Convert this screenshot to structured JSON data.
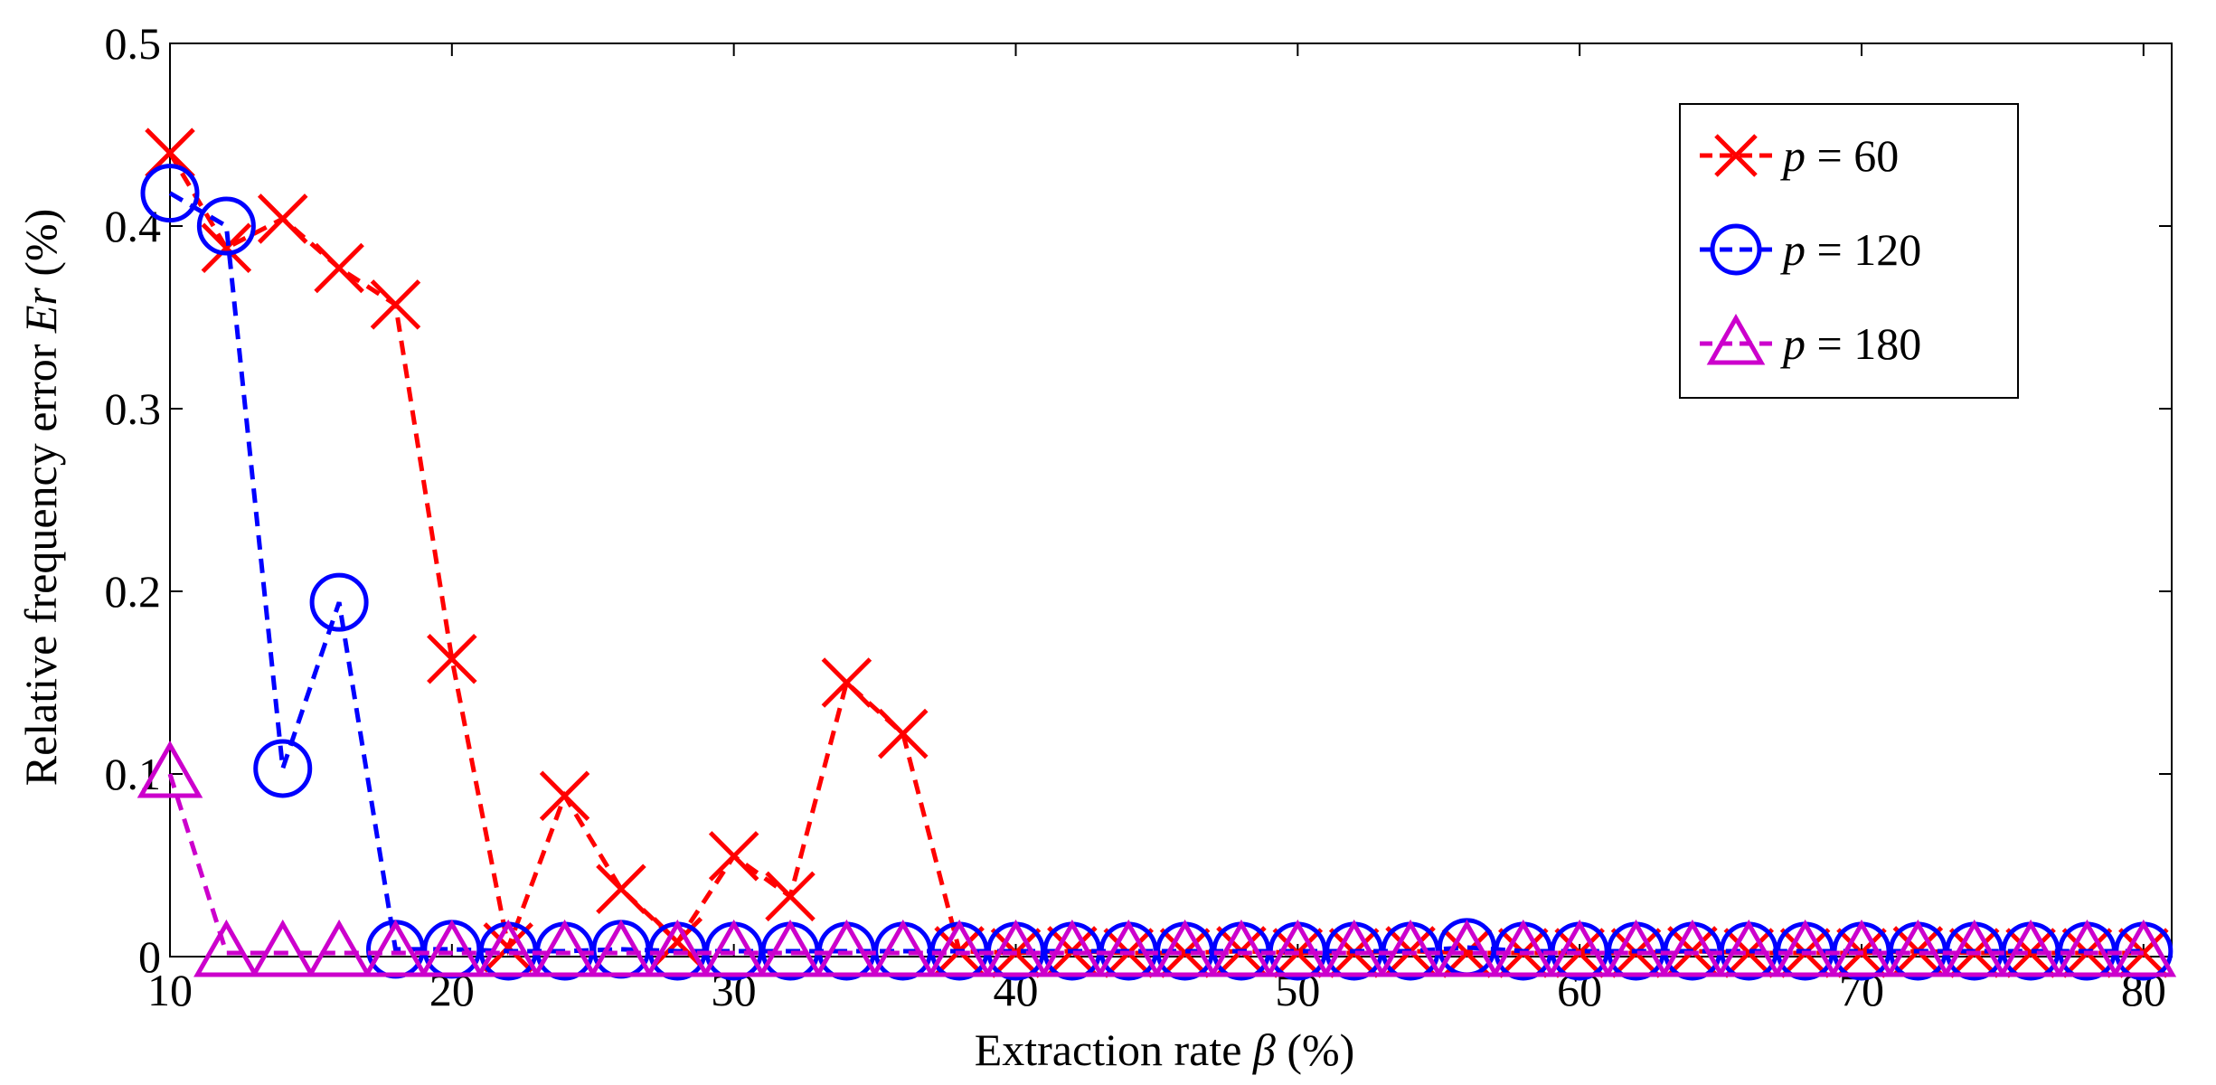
{
  "chart_data": {
    "type": "line",
    "title": "",
    "xlabel": {
      "prefix": "Extraction rate ",
      "symbol": "β",
      "suffix": " (%)"
    },
    "ylabel": {
      "prefix": "Relative frequency error ",
      "symbol": "Er",
      "suffix": " (%)"
    },
    "xlim": [
      10,
      81
    ],
    "ylim": [
      0,
      0.5
    ],
    "xticks": [
      10,
      20,
      30,
      40,
      50,
      60,
      70,
      80
    ],
    "yticks": [
      0,
      0.1,
      0.2,
      0.3,
      0.4,
      0.5
    ],
    "xtick_labels": [
      "10",
      "20",
      "30",
      "40",
      "50",
      "60",
      "70",
      "80"
    ],
    "ytick_labels": [
      "0",
      "0.1",
      "0.2",
      "0.3",
      "0.4",
      "0.5"
    ],
    "grid": false,
    "legend_position": "top-right",
    "x": [
      10,
      12,
      14,
      16,
      18,
      20,
      22,
      24,
      26,
      28,
      30,
      32,
      34,
      36,
      38,
      40,
      42,
      44,
      46,
      48,
      50,
      52,
      54,
      56,
      58,
      60,
      62,
      64,
      66,
      68,
      70,
      72,
      74,
      76,
      78,
      80
    ],
    "series": [
      {
        "name": "p = 60",
        "legend_var": "p",
        "legend_value": " = 60",
        "color": "#ff0000",
        "marker": "x",
        "values": [
          0.44,
          0.388,
          0.404,
          0.377,
          0.357,
          0.163,
          0.005,
          0.088,
          0.037,
          0.008,
          0.055,
          0.033,
          0.15,
          0.122,
          0.003,
          0.002,
          0.003,
          0.002,
          0.002,
          0.003,
          0.002,
          0.002,
          0.003,
          0.002,
          0.002,
          0.002,
          0.002,
          0.003,
          0.002,
          0.002,
          0.002,
          0.003,
          0.002,
          0.002,
          0.002,
          0.002
        ]
      },
      {
        "name": "p = 120",
        "legend_var": "p",
        "legend_value": " = 120",
        "color": "#0000ff",
        "marker": "circle",
        "values": [
          0.418,
          0.4,
          0.103,
          0.194,
          0.004,
          0.004,
          0.003,
          0.003,
          0.004,
          0.003,
          0.003,
          0.003,
          0.003,
          0.003,
          0.003,
          0.003,
          0.003,
          0.003,
          0.003,
          0.003,
          0.003,
          0.003,
          0.003,
          0.005,
          0.003,
          0.003,
          0.003,
          0.003,
          0.003,
          0.003,
          0.003,
          0.003,
          0.003,
          0.003,
          0.003,
          0.003
        ]
      },
      {
        "name": "p = 180",
        "legend_var": "p",
        "legend_value": " = 180",
        "color": "#cc00cc",
        "marker": "triangle",
        "values": [
          0.1,
          0.002,
          0.002,
          0.002,
          0.002,
          0.002,
          0.002,
          0.002,
          0.002,
          0.002,
          0.002,
          0.002,
          0.002,
          0.002,
          0.002,
          0.002,
          0.002,
          0.002,
          0.002,
          0.002,
          0.002,
          0.002,
          0.002,
          0.002,
          0.002,
          0.002,
          0.002,
          0.002,
          0.002,
          0.002,
          0.002,
          0.002,
          0.002,
          0.002,
          0.002,
          0.002
        ]
      }
    ]
  }
}
